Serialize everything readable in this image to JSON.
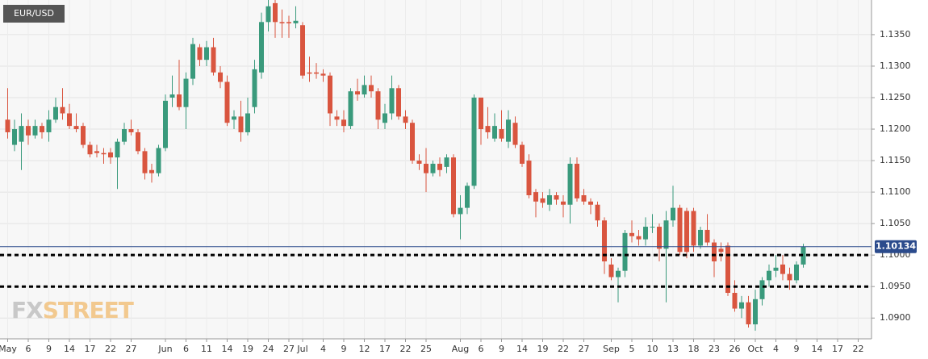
{
  "chart_data": {
    "type": "candlestick",
    "title": "EUR/USD",
    "watermark": [
      "FX",
      "STREET"
    ],
    "categories": [
      "May",
      null,
      null,
      "6",
      null,
      null,
      "9",
      null,
      null,
      "14",
      null,
      null,
      "17",
      null,
      null,
      "22",
      null,
      null,
      "27",
      null,
      null,
      null,
      null,
      "Jun",
      null,
      null,
      "6",
      null,
      null,
      "11",
      null,
      null,
      "14",
      null,
      null,
      "19",
      null,
      null,
      "24",
      null,
      null,
      "27",
      null,
      "Jul",
      null,
      null,
      "4",
      null,
      null,
      "9",
      null,
      null,
      "12",
      null,
      null,
      "17",
      null,
      null,
      "22",
      null,
      null,
      "25",
      null,
      null,
      null,
      null,
      "Aug",
      null,
      null,
      "6",
      null,
      null,
      "9",
      null,
      null,
      "14",
      null,
      null,
      "19",
      null,
      null,
      "22",
      null,
      null,
      "27",
      null,
      null,
      null,
      "Sep",
      null,
      null,
      "5",
      null,
      null,
      "10",
      null,
      null,
      "13",
      null,
      null,
      "18",
      null,
      null,
      "23",
      null,
      null,
      "26",
      null,
      null,
      "Oct",
      null,
      null,
      "4",
      null,
      null,
      "9",
      null,
      null,
      "14",
      null,
      null,
      "17",
      null,
      null,
      "22"
    ],
    "open": [
      1.1215,
      1.1175,
      1.118,
      1.1205,
      1.119,
      1.1205,
      1.1195,
      1.1215,
      1.1235,
      1.1225,
      1.1205,
      1.1205,
      1.1175,
      1.1165,
      1.1162,
      1.1163,
      1.1155,
      1.118,
      1.12,
      1.1195,
      1.1165,
      1.1135,
      1.113,
      1.117,
      1.125,
      1.1255,
      1.1235,
      1.128,
      1.133,
      1.131,
      1.133,
      1.129,
      1.1275,
      1.1215,
      1.122,
      1.1195,
      1.1235,
      1.129,
      1.137,
      1.14,
      1.137,
      1.137,
      1.1368,
      1.1365,
      1.129,
      1.129,
      1.1288,
      1.1285,
      1.122,
      1.1215,
      1.1205,
      1.126,
      1.1255,
      1.127,
      1.126,
      1.121,
      1.1225,
      1.1265,
      1.122,
      1.121,
      1.115,
      1.1145,
      1.113,
      1.1145,
      1.114,
      1.1155,
      1.1065,
      1.1075,
      1.111,
      1.125,
      1.1205,
      1.1185,
      1.12,
      1.118,
      1.121,
      1.1175,
      1.115,
      1.11,
      1.109,
      1.108,
      1.1095,
      1.1085,
      1.108,
      1.1145,
      1.1095,
      1.1085,
      1.108,
      1.1055,
      1.0985,
      1.0965,
      1.0975,
      1.1035,
      1.103,
      1.1025,
      1.1045,
      1.1045,
      1.101,
      1.1055,
      1.1075,
      1.107,
      1.107,
      1.1015,
      1.104,
      1.102,
      1.101,
      1.1015,
      1.094,
      1.0915,
      1.0925,
      1.089,
      1.093,
      1.096,
      1.0975,
      1.0985,
      1.097,
      1.096,
      1.0985,
      null,
      null,
      null,
      null,
      null,
      null,
      null,
      null
    ],
    "high": [
      1.1265,
      1.1215,
      1.1225,
      1.1215,
      1.1215,
      1.121,
      1.123,
      1.125,
      1.1265,
      1.124,
      1.1225,
      1.121,
      1.118,
      1.1175,
      1.117,
      1.117,
      1.1185,
      1.121,
      1.1215,
      1.12,
      1.117,
      1.1145,
      1.1175,
      1.1255,
      1.1285,
      1.131,
      1.129,
      1.1345,
      1.1335,
      1.134,
      1.1345,
      1.13,
      1.1285,
      1.123,
      1.1245,
      1.125,
      1.131,
      1.1385,
      1.1405,
      1.1405,
      1.139,
      1.138,
      1.1395,
      1.137,
      1.1315,
      1.1305,
      1.1295,
      1.129,
      1.123,
      1.123,
      1.1265,
      1.128,
      1.1285,
      1.1285,
      1.1265,
      1.124,
      1.1285,
      1.127,
      1.123,
      1.1215,
      1.116,
      1.117,
      1.115,
      1.1155,
      1.116,
      1.116,
      1.1095,
      1.1115,
      1.1255,
      1.125,
      1.1235,
      1.1225,
      1.123,
      1.123,
      1.122,
      1.118,
      1.116,
      1.1105,
      1.11,
      1.1105,
      1.11,
      1.1095,
      1.1155,
      1.1155,
      1.1105,
      1.109,
      1.1085,
      1.106,
      1.0995,
      1.098,
      1.104,
      1.1055,
      1.104,
      1.106,
      1.1065,
      1.105,
      1.107,
      1.111,
      1.108,
      1.1075,
      1.1075,
      1.1045,
      1.1065,
      1.1025,
      1.102,
      1.102,
      1.096,
      1.0935,
      1.0935,
      1.0945,
      1.0965,
      1.0985,
      1.1,
      1.1,
      1.098,
      1.099,
      1.1018,
      null,
      null,
      null,
      null,
      null,
      null,
      null,
      null
    ],
    "low": [
      1.1185,
      1.1165,
      1.1135,
      1.1175,
      1.1185,
      1.1185,
      1.118,
      1.121,
      1.1215,
      1.12,
      1.1195,
      1.117,
      1.1155,
      1.1155,
      1.1145,
      1.1145,
      1.1105,
      1.1175,
      1.119,
      1.116,
      1.112,
      1.1115,
      1.1125,
      1.1165,
      1.1235,
      1.123,
      1.12,
      1.127,
      1.13,
      1.13,
      1.1285,
      1.1265,
      1.1205,
      1.12,
      1.118,
      1.119,
      1.1225,
      1.128,
      1.1355,
      1.1345,
      1.1345,
      1.1345,
      1.136,
      1.128,
      1.1275,
      1.128,
      1.1275,
      1.1205,
      1.1205,
      1.1195,
      1.12,
      1.1245,
      1.125,
      1.125,
      1.12,
      1.12,
      1.1215,
      1.1215,
      1.12,
      1.1145,
      1.1135,
      1.11,
      1.1125,
      1.1125,
      1.113,
      1.106,
      1.1025,
      1.1065,
      1.1105,
      1.1175,
      1.1185,
      1.118,
      1.118,
      1.117,
      1.117,
      1.114,
      1.109,
      1.106,
      1.1075,
      1.107,
      1.108,
      1.106,
      1.105,
      1.1085,
      1.108,
      1.1065,
      1.1045,
      1.097,
      1.096,
      1.0925,
      1.0965,
      1.102,
      1.1015,
      1.1015,
      1.1035,
      1.099,
      1.0925,
      1.1045,
      1.1,
      1.0995,
      1.1005,
      1.101,
      1.1015,
      1.0965,
      1.099,
      1.0935,
      1.091,
      1.09,
      1.0885,
      1.088,
      1.092,
      1.095,
      1.0965,
      1.096,
      1.0945,
      1.0955,
      1.098,
      null,
      null,
      null,
      null,
      null,
      null,
      null,
      null
    ],
    "close": [
      1.1195,
      1.12,
      1.1205,
      1.119,
      1.1205,
      1.1195,
      1.1215,
      1.1235,
      1.1225,
      1.1205,
      1.12,
      1.1175,
      1.116,
      1.1162,
      1.116,
      1.1155,
      1.118,
      1.12,
      1.1195,
      1.1165,
      1.113,
      1.113,
      1.117,
      1.1245,
      1.1255,
      1.1235,
      1.128,
      1.1335,
      1.131,
      1.133,
      1.129,
      1.1275,
      1.121,
      1.122,
      1.1195,
      1.1225,
      1.1295,
      1.137,
      1.1395,
      1.137,
      1.1368,
      1.1368,
      1.1372,
      1.1285,
      1.1288,
      1.1288,
      1.1285,
      1.1225,
      1.1215,
      1.1205,
      1.126,
      1.1255,
      1.127,
      1.126,
      1.1215,
      1.1225,
      1.1265,
      1.122,
      1.121,
      1.115,
      1.1145,
      1.113,
      1.1145,
      1.1135,
      1.1155,
      1.1065,
      1.1075,
      1.111,
      1.125,
      1.12,
      1.1195,
      1.1205,
      1.1185,
      1.1215,
      1.1175,
      1.1145,
      1.1095,
      1.1085,
      1.1083,
      1.1095,
      1.1088,
      1.108,
      1.1145,
      1.109,
      1.1085,
      1.108,
      1.1055,
      1.099,
      1.0965,
      1.0975,
      1.1035,
      1.103,
      1.1025,
      1.1045,
      1.1045,
      1.101,
      1.1055,
      1.1075,
      1.1005,
      1.1005,
      1.1015,
      1.104,
      1.102,
      1.099,
      1.1005,
      1.094,
      1.0915,
      1.0925,
      1.089,
      1.093,
      1.096,
      1.0975,
      1.098,
      1.097,
      1.096,
      1.0985,
      1.10134,
      null,
      null,
      null,
      null,
      null,
      null,
      null,
      null
    ],
    "up_color": "#3a9a7c",
    "down_color": "#d9553f",
    "levels": [
      1.1,
      1.095
    ],
    "ylim": [
      1.0867,
      1.1405
    ],
    "yticks": [
      {
        "value": 1.135,
        "label": "1.1350"
      },
      {
        "value": 1.13,
        "label": "1.1300"
      },
      {
        "value": 1.125,
        "label": "1.1250"
      },
      {
        "value": 1.12,
        "label": "1.1200"
      },
      {
        "value": 1.115,
        "label": "1.1150"
      },
      {
        "value": 1.11,
        "label": "1.1100"
      },
      {
        "value": 1.105,
        "label": "1.1050"
      },
      {
        "value": 1.1,
        "label": "1.1000"
      },
      {
        "value": 1.095,
        "label": "1.0950"
      },
      {
        "value": 1.09,
        "label": "1.0900"
      }
    ],
    "grid": true
  }
}
